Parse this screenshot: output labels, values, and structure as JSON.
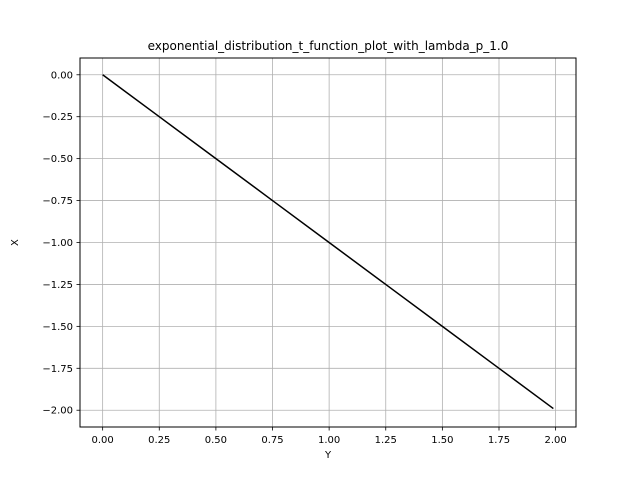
{
  "chart_data": {
    "type": "line",
    "title": "exponential_distribution_t_function_plot_with_lambda_p_1.0",
    "xlabel": "Y",
    "ylabel": "X",
    "xlim": [
      -0.1,
      2.09
    ],
    "ylim": [
      -2.1,
      0.1
    ],
    "grid": true,
    "x_ticks": [
      0.0,
      0.25,
      0.5,
      0.75,
      1.0,
      1.25,
      1.5,
      1.75,
      2.0
    ],
    "x_tick_labels": [
      "0.00",
      "0.25",
      "0.50",
      "0.75",
      "1.00",
      "1.25",
      "1.50",
      "1.75",
      "2.00"
    ],
    "y_ticks": [
      0.0,
      -0.25,
      -0.5,
      -0.75,
      -1.0,
      -1.25,
      -1.5,
      -1.75,
      -2.0
    ],
    "y_tick_labels": [
      "0.00",
      "−0.25",
      "−0.50",
      "−0.75",
      "−1.00",
      "−1.25",
      "−1.50",
      "−1.75",
      "−2.00"
    ],
    "series": [
      {
        "color": "#000000",
        "x": [
          0.0,
          0.25,
          0.5,
          0.75,
          1.0,
          1.25,
          1.5,
          1.75,
          1.99
        ],
        "y": [
          0.0,
          -0.25,
          -0.5,
          -0.75,
          -1.0,
          -1.25,
          -1.5,
          -1.75,
          -1.99
        ]
      }
    ]
  }
}
